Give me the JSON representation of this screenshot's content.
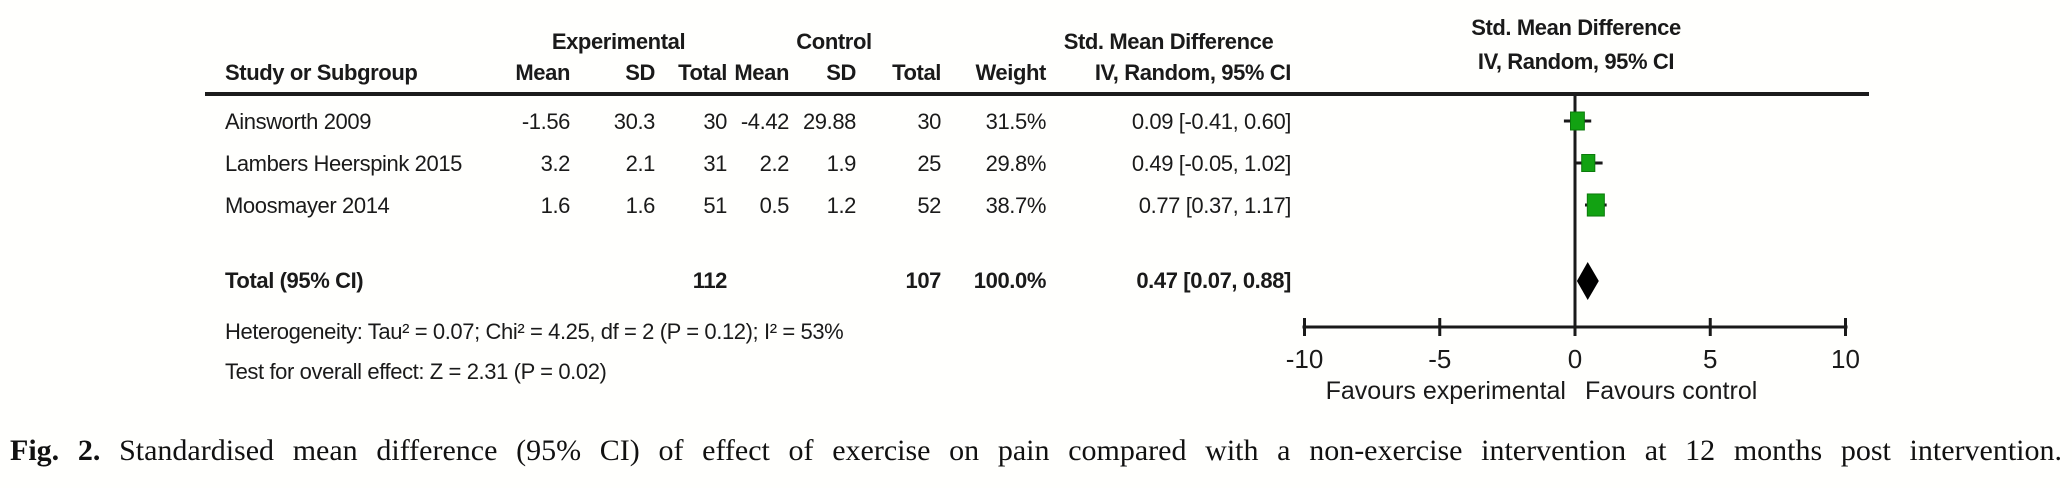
{
  "table": {
    "header": {
      "group_experimental": "Experimental",
      "group_control": "Control",
      "group_smd": "Std. Mean Difference",
      "study": "Study or Subgroup",
      "mean1": "Mean",
      "sd1": "SD",
      "total1": "Total",
      "mean2": "Mean",
      "sd2": "SD",
      "total2": "Total",
      "weight": "Weight",
      "method": "IV, Random, 95% CI"
    },
    "rows": [
      {
        "study": "Ainsworth 2009",
        "mean1": "-1.56",
        "sd1": "30.3",
        "total1": "30",
        "mean2": "-4.42",
        "sd2": "29.88",
        "total2": "30",
        "weight": "31.5%",
        "ci": "0.09 [-0.41, 0.60]"
      },
      {
        "study": "Lambers Heerspink 2015",
        "mean1": "3.2",
        "sd1": "2.1",
        "total1": "31",
        "mean2": "2.2",
        "sd2": "1.9",
        "total2": "25",
        "weight": "29.8%",
        "ci": "0.49 [-0.05, 1.02]"
      },
      {
        "study": "Moosmayer 2014",
        "mean1": "1.6",
        "sd1": "1.6",
        "total1": "51",
        "mean2": "0.5",
        "sd2": "1.2",
        "total2": "52",
        "weight": "38.7%",
        "ci": "0.77 [0.37, 1.17]"
      }
    ],
    "total_row": {
      "label": "Total (95% CI)",
      "total1": "112",
      "total2": "107",
      "weight": "100.0%",
      "ci": "0.47 [0.07, 0.88]"
    },
    "heterogeneity": "Heterogeneity: Tau² = 0.07; Chi² = 4.25, df = 2 (P = 0.12); I² = 53%",
    "overall_effect": "Test for overall effect: Z = 2.31 (P = 0.02)"
  },
  "plot": {
    "header_line1": "Std. Mean Difference",
    "header_line2": "IV, Random, 95% CI",
    "favours_left": "Favours experimental",
    "favours_right": "Favours control",
    "marker_color": "#12a212",
    "marker_border": "#0b7a0b",
    "line_color": "#1a1a1a"
  },
  "chart_data": {
    "type": "forest",
    "effect_measure": "Std. Mean Difference (IV, Random, 95% CI)",
    "x_axis": {
      "min": -10,
      "max": 10,
      "ticks": [
        -10,
        -5,
        0,
        5,
        10
      ]
    },
    "axis_labels": {
      "left": "Favours experimental",
      "right": "Favours control"
    },
    "studies": [
      {
        "name": "Ainsworth 2009",
        "smd": 0.09,
        "ci_low": -0.41,
        "ci_high": 0.6,
        "weight_pct": 31.5
      },
      {
        "name": "Lambers Heerspink 2015",
        "smd": 0.49,
        "ci_low": -0.05,
        "ci_high": 1.02,
        "weight_pct": 29.8
      },
      {
        "name": "Moosmayer 2014",
        "smd": 0.77,
        "ci_low": 0.37,
        "ci_high": 1.17,
        "weight_pct": 38.7
      }
    ],
    "total": {
      "smd": 0.47,
      "ci_low": 0.07,
      "ci_high": 0.88,
      "weight_pct": 100.0
    },
    "statistics": {
      "tau2": 0.07,
      "chi2": 4.25,
      "df": 2,
      "p_heterogeneity": 0.12,
      "i2_pct": 53,
      "z": 2.31,
      "p_overall": 0.02
    }
  },
  "caption": {
    "label": "Fig. 2.",
    "text": "Standardised mean difference (95% CI) of effect of exercise on pain compared with a non-exercise intervention at 12 months post intervention."
  }
}
